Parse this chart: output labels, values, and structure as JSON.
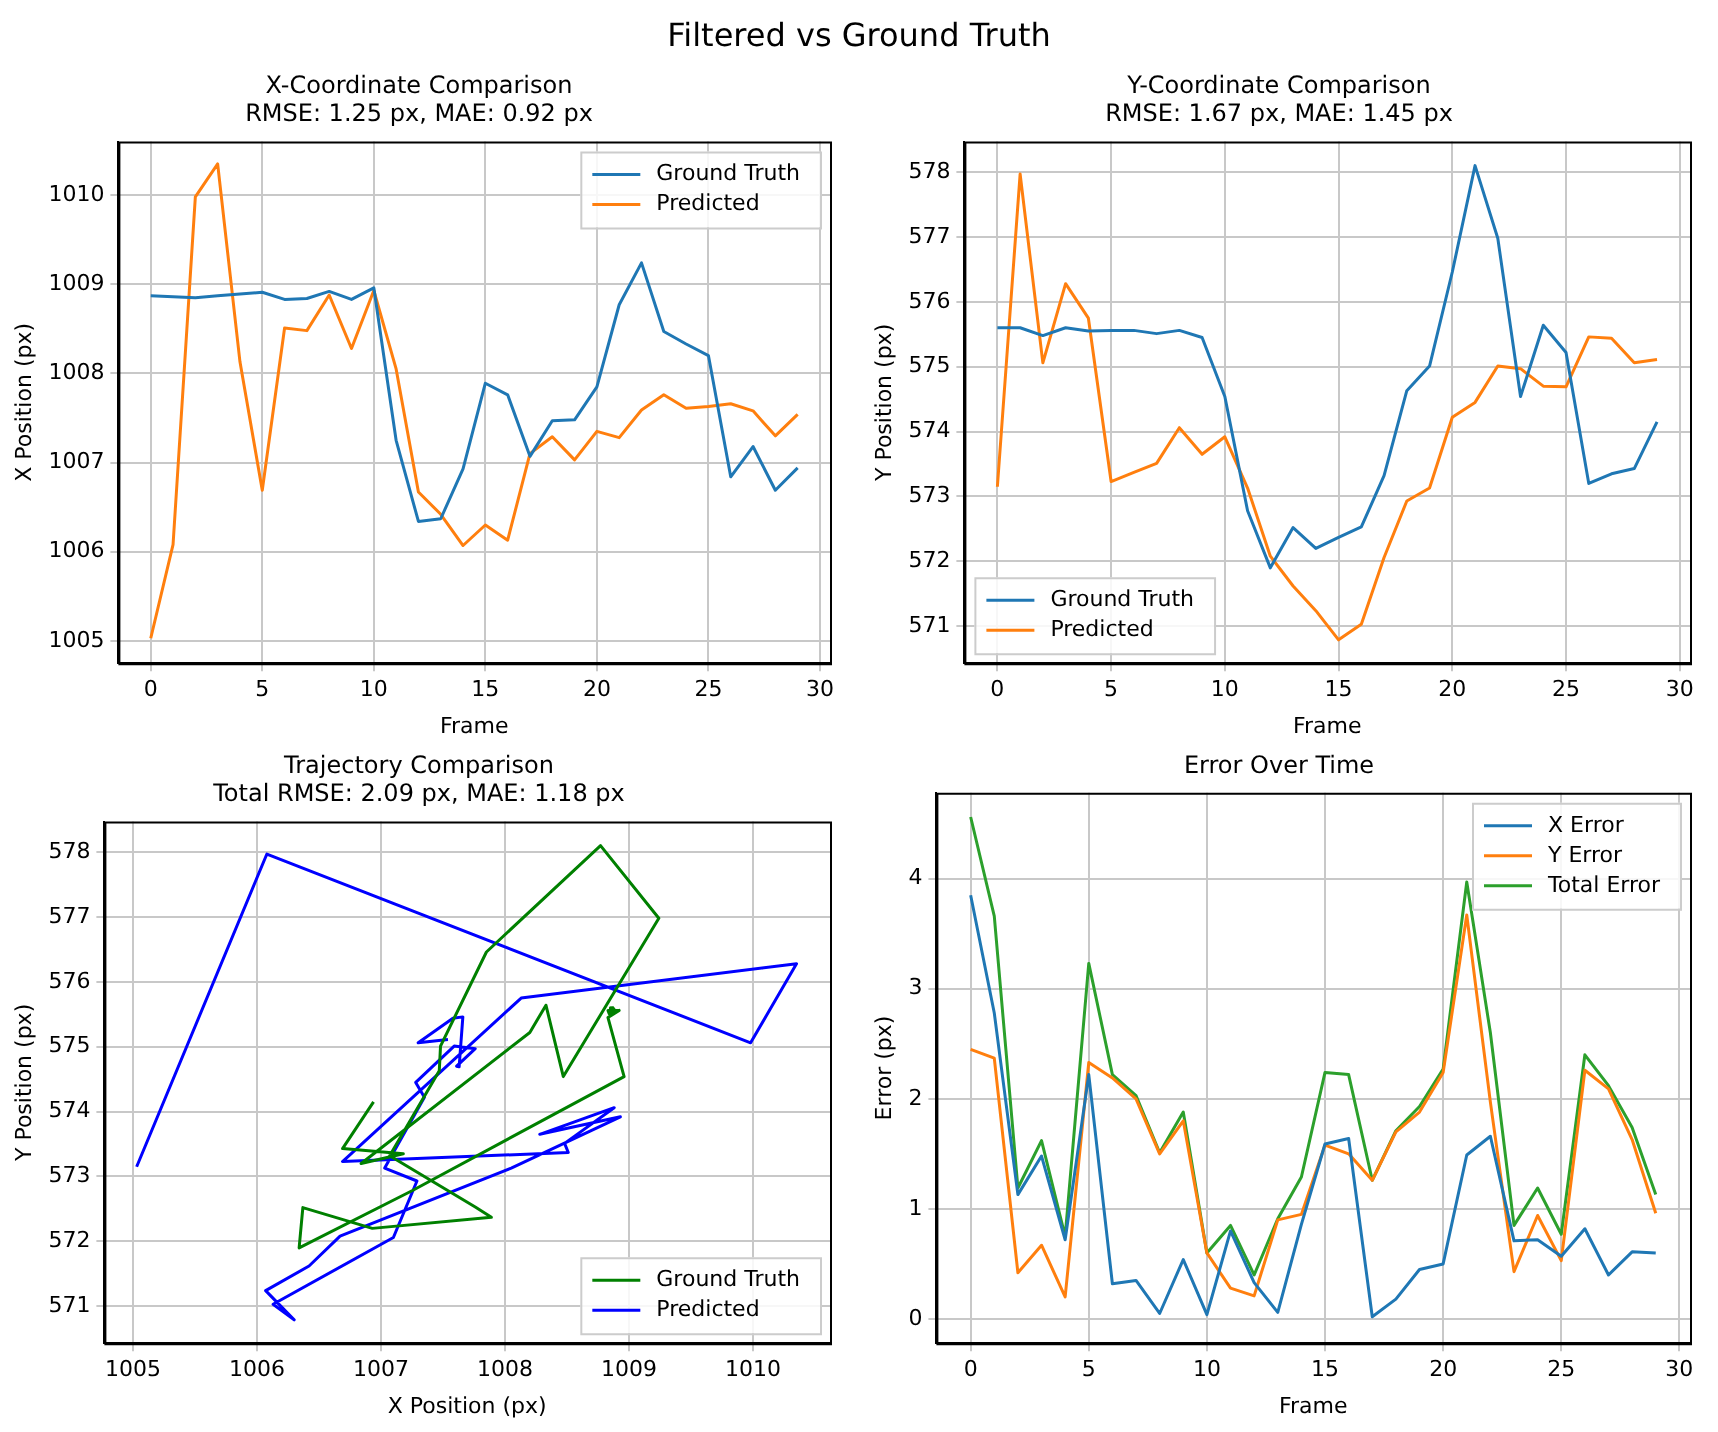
{
  "chart_data": [
    {
      "type": "line",
      "title": "X-Coordinate Comparison",
      "subtitle": "RMSE: 1.25 px, MAE: 0.92 px",
      "annotations": [
        "Filtered vs Ground Truth"
      ],
      "xlabel": "Frame",
      "ylabel": "X Position (px)",
      "x": [
        0,
        1,
        2,
        3,
        4,
        5,
        6,
        7,
        8,
        9,
        10,
        11,
        12,
        13,
        14,
        15,
        16,
        17,
        18,
        19,
        20,
        21,
        22,
        23,
        24,
        25,
        26,
        27,
        28,
        29
      ],
      "series": [
        {
          "name": "Ground Truth",
          "color": "#1f77b4",
          "values": [
            1008.87,
            1008.86,
            1008.85,
            1008.87,
            1008.89,
            1008.91,
            1008.83,
            1008.84,
            1008.92,
            1008.83,
            1008.96,
            1007.25,
            1006.34,
            1006.37,
            1006.93,
            1007.89,
            1007.76,
            1007.07,
            1007.47,
            1007.48,
            1007.85,
            1008.77,
            1009.24,
            1008.47,
            1008.33,
            1008.2,
            1006.84,
            1007.18,
            1006.69,
            1006.94
          ]
        },
        {
          "name": "Predicted",
          "color": "#ff7f0e",
          "values": [
            1005.03,
            1006.08,
            1009.98,
            1010.35,
            1008.13,
            1006.69,
            1008.51,
            1008.48,
            1008.88,
            1008.28,
            1008.93,
            1008.05,
            1006.67,
            1006.42,
            1006.07,
            1006.3,
            1006.13,
            1007.1,
            1007.29,
            1007.03,
            1007.35,
            1007.28,
            1007.59,
            1007.76,
            1007.61,
            1007.63,
            1007.66,
            1007.58,
            1007.3,
            1007.54
          ]
        }
      ],
      "xlim": [
        -1.45,
        30.45
      ],
      "xticks": [
        0,
        5,
        10,
        15,
        20,
        25,
        30
      ],
      "ylim": [
        1004.75,
        1010.6
      ],
      "yticks": [
        1005,
        1006,
        1007,
        1008,
        1009,
        1010
      ],
      "grid": true,
      "legend": "top right"
    },
    {
      "type": "line",
      "title": "Y-Coordinate Comparison",
      "subtitle": "RMSE: 1.67 px, MAE: 1.45 px",
      "xlabel": "Frame",
      "ylabel": "Y Position (px)",
      "x": [
        0,
        1,
        2,
        3,
        4,
        5,
        6,
        7,
        8,
        9,
        10,
        11,
        12,
        13,
        14,
        15,
        16,
        17,
        18,
        19,
        20,
        21,
        22,
        23,
        24,
        25,
        26,
        27,
        28,
        29
      ],
      "series": [
        {
          "name": "Ground Truth",
          "color": "#1f77b4",
          "values": [
            575.6,
            575.6,
            575.48,
            575.6,
            575.55,
            575.56,
            575.56,
            575.51,
            575.56,
            575.45,
            574.54,
            572.78,
            571.9,
            572.52,
            572.2,
            572.37,
            572.53,
            573.32,
            574.63,
            575.01,
            576.46,
            578.1,
            576.98,
            574.54,
            575.64,
            575.22,
            573.2,
            573.35,
            573.43,
            574.15
          ]
        },
        {
          "name": "Predicted",
          "color": "#ff7f0e",
          "values": [
            573.15,
            577.97,
            575.06,
            576.28,
            575.75,
            573.23,
            573.37,
            573.51,
            574.06,
            573.65,
            573.92,
            573.13,
            572.08,
            571.62,
            571.24,
            570.79,
            571.03,
            572.06,
            572.93,
            573.13,
            574.22,
            574.45,
            575.01,
            574.97,
            574.7,
            574.69,
            575.46,
            575.44,
            575.06,
            575.11
          ]
        }
      ],
      "xlim": [
        -1.45,
        30.45
      ],
      "xticks": [
        0,
        5,
        10,
        15,
        20,
        25,
        30
      ],
      "ylim": [
        570.43,
        578.47
      ],
      "yticks": [
        571,
        572,
        573,
        574,
        575,
        576,
        577,
        578
      ],
      "grid": true,
      "legend": "bottom left"
    },
    {
      "type": "line",
      "title": "Trajectory Comparison",
      "subtitle": "Total RMSE: 2.09 px, MAE: 1.18 px",
      "xlabel": "X Position (px)",
      "ylabel": "Y Position (px)",
      "series": [
        {
          "name": "Ground Truth",
          "color": "#008000",
          "x": [
            1008.87,
            1008.86,
            1008.85,
            1008.87,
            1008.89,
            1008.91,
            1008.83,
            1008.84,
            1008.92,
            1008.83,
            1008.96,
            1007.25,
            1006.34,
            1006.37,
            1006.93,
            1007.89,
            1007.76,
            1007.07,
            1007.47,
            1007.48,
            1007.85,
            1008.77,
            1009.24,
            1008.47,
            1008.33,
            1008.2,
            1006.84,
            1007.18,
            1006.69,
            1006.94
          ],
          "values": [
            575.6,
            575.6,
            575.48,
            575.6,
            575.55,
            575.56,
            575.56,
            575.51,
            575.56,
            575.45,
            574.54,
            572.78,
            571.9,
            572.52,
            572.2,
            572.37,
            572.53,
            573.32,
            574.63,
            575.01,
            576.46,
            578.1,
            576.98,
            574.54,
            575.64,
            575.22,
            573.2,
            573.35,
            573.43,
            574.15
          ]
        },
        {
          "name": "Predicted",
          "color": "#0000ff",
          "x": [
            1005.03,
            1006.08,
            1009.98,
            1010.35,
            1008.13,
            1006.69,
            1008.51,
            1008.48,
            1008.88,
            1008.28,
            1008.93,
            1008.05,
            1006.67,
            1006.42,
            1006.07,
            1006.3,
            1006.13,
            1007.1,
            1007.29,
            1007.03,
            1007.35,
            1007.28,
            1007.59,
            1007.76,
            1007.61,
            1007.63,
            1007.66,
            1007.58,
            1007.3,
            1007.54
          ],
          "values": [
            573.15,
            577.97,
            575.06,
            576.28,
            575.75,
            573.23,
            573.37,
            573.51,
            574.06,
            573.65,
            573.92,
            573.13,
            572.08,
            571.62,
            571.24,
            570.79,
            571.03,
            572.06,
            572.93,
            573.13,
            574.22,
            574.45,
            575.01,
            574.97,
            574.7,
            574.69,
            575.46,
            575.44,
            575.06,
            575.11
          ]
        }
      ],
      "xlim": [
        1004.77,
        1010.62
      ],
      "xticks": [
        1005,
        1006,
        1007,
        1008,
        1009,
        1010
      ],
      "ylim": [
        570.43,
        578.47
      ],
      "yticks": [
        571,
        572,
        573,
        574,
        575,
        576,
        577,
        578
      ],
      "grid": true,
      "legend": "bottom right"
    },
    {
      "type": "line",
      "title": "Error Over Time",
      "xlabel": "Frame",
      "ylabel": "Error (px)",
      "x": [
        0,
        1,
        2,
        3,
        4,
        5,
        6,
        7,
        8,
        9,
        10,
        11,
        12,
        13,
        14,
        15,
        16,
        17,
        18,
        19,
        20,
        21,
        22,
        23,
        24,
        25,
        26,
        27,
        28,
        29
      ],
      "series": [
        {
          "name": "X Error",
          "color": "#1f77b4",
          "values": [
            3.85,
            2.78,
            1.13,
            1.48,
            0.72,
            2.22,
            0.32,
            0.35,
            0.05,
            0.54,
            0.04,
            0.8,
            0.33,
            0.06,
            0.86,
            1.59,
            1.64,
            0.02,
            0.18,
            0.45,
            0.5,
            1.49,
            1.66,
            0.71,
            0.72,
            0.57,
            0.82,
            0.4,
            0.61,
            0.6
          ]
        },
        {
          "name": "Y Error",
          "color": "#ff7f0e",
          "values": [
            2.45,
            2.37,
            0.42,
            0.67,
            0.2,
            2.33,
            2.19,
            2.0,
            1.5,
            1.8,
            0.6,
            0.28,
            0.21,
            0.9,
            0.95,
            1.58,
            1.5,
            1.26,
            1.7,
            1.88,
            2.24,
            3.67,
            1.97,
            0.43,
            0.94,
            0.53,
            2.26,
            2.09,
            1.63,
            0.96
          ]
        },
        {
          "name": "Total Error",
          "color": "#2ca02c",
          "values": [
            4.56,
            3.66,
            1.19,
            1.62,
            0.75,
            3.23,
            2.22,
            2.03,
            1.51,
            1.88,
            0.6,
            0.85,
            0.4,
            0.91,
            1.29,
            2.24,
            2.22,
            1.26,
            1.71,
            1.93,
            2.27,
            3.97,
            2.6,
            0.85,
            1.19,
            0.77,
            2.4,
            2.12,
            1.74,
            1.13
          ]
        }
      ],
      "xlim": [
        -1.45,
        30.45
      ],
      "xticks": [
        0,
        5,
        10,
        15,
        20,
        25,
        30
      ],
      "ylim": [
        -0.22,
        4.78
      ],
      "yticks": [
        0,
        1,
        2,
        3,
        4
      ],
      "grid": true,
      "legend": "top right"
    }
  ]
}
